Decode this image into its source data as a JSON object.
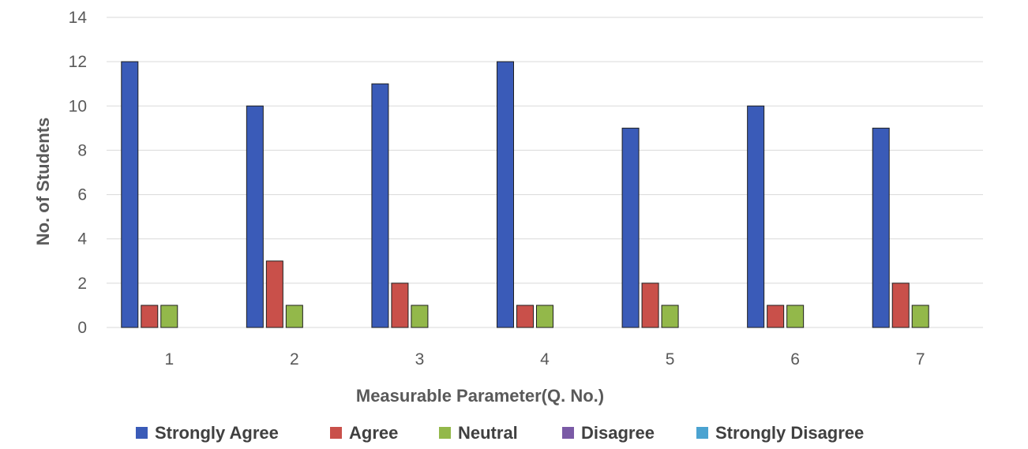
{
  "chart_data": {
    "type": "bar",
    "categories": [
      "1",
      "2",
      "3",
      "4",
      "5",
      "6",
      "7"
    ],
    "series": [
      {
        "name": "Strongly Agree",
        "color": "#3A5BB8",
        "values": [
          12,
          10,
          11,
          12,
          9,
          10,
          9
        ]
      },
      {
        "name": "Agree",
        "color": "#C9504A",
        "values": [
          1,
          3,
          2,
          1,
          2,
          1,
          2
        ]
      },
      {
        "name": "Neutral",
        "color": "#93B84A",
        "values": [
          1,
          1,
          1,
          1,
          1,
          1,
          1
        ]
      },
      {
        "name": "Disagree",
        "color": "#7A5AA6",
        "values": [
          0,
          0,
          0,
          0,
          0,
          0,
          0
        ]
      },
      {
        "name": "Strongly Disagree",
        "color": "#4BA3D1",
        "values": [
          0,
          0,
          0,
          0,
          0,
          0,
          0
        ]
      }
    ],
    "xlabel": "Measurable Parameter(Q. No.)",
    "ylabel": "No. of Students",
    "ylim": [
      0,
      14
    ],
    "yticks": [
      "0",
      "2",
      "4",
      "6",
      "8",
      "10",
      "12",
      "14"
    ],
    "grid": true,
    "legend_position": "bottom"
  }
}
